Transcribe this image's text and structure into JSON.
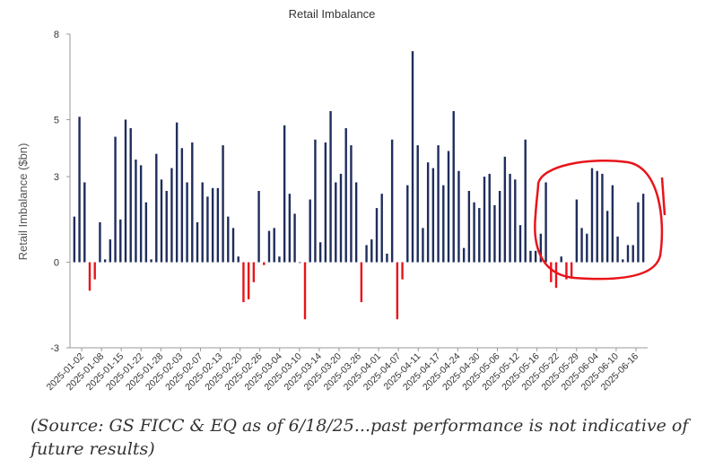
{
  "chart_data": {
    "type": "bar",
    "title": "Retail Imbalance",
    "ylabel": "Retail Imbalance ($bn)",
    "xlabel": "",
    "ylim": [
      -3,
      8
    ],
    "yticks": [
      -3,
      0,
      3,
      5,
      8
    ],
    "x_tick_labels": [
      "2025-01-02",
      "2025-01-08",
      "2025-01-15",
      "2025-01-22",
      "2025-01-28",
      "2025-02-03",
      "2025-02-07",
      "2025-02-13",
      "2025-02-20",
      "2025-02-26",
      "2025-03-04",
      "2025-03-10",
      "2025-03-14",
      "2025-03-20",
      "2025-03-26",
      "2025-04-01",
      "2025-04-07",
      "2025-04-11",
      "2025-04-17",
      "2025-04-24",
      "2025-04-30",
      "2025-05-06",
      "2025-05-12",
      "2025-05-16",
      "2025-05-22",
      "2025-05-29",
      "2025-06-04",
      "2025-06-10",
      "2025-06-16"
    ],
    "bar_values": [
      1.6,
      5.1,
      2.8,
      -1.0,
      -0.6,
      1.4,
      0.1,
      0.8,
      4.4,
      1.5,
      5.0,
      4.7,
      3.6,
      3.4,
      2.1,
      0.1,
      3.8,
      2.9,
      2.5,
      3.3,
      4.9,
      4.0,
      2.8,
      4.2,
      1.4,
      2.8,
      2.3,
      2.6,
      2.6,
      4.1,
      1.6,
      1.2,
      0.2,
      -1.4,
      -1.3,
      -0.7,
      2.5,
      -0.1,
      1.1,
      1.2,
      0.2,
      4.8,
      2.4,
      1.7,
      0.0,
      -2.0,
      2.2,
      4.3,
      0.7,
      4.2,
      5.3,
      2.8,
      3.1,
      4.7,
      4.1,
      2.8,
      -1.4,
      0.6,
      0.8,
      1.9,
      2.4,
      0.3,
      4.3,
      -2.0,
      -0.6,
      2.7,
      7.4,
      4.1,
      1.2,
      3.5,
      3.3,
      4.1,
      2.7,
      3.9,
      5.3,
      3.2,
      0.5,
      2.5,
      2.1,
      1.9,
      3.0,
      3.1,
      2.0,
      2.5,
      3.7,
      3.1,
      2.9,
      1.3,
      4.3,
      0.4,
      0.4,
      1.0,
      2.8,
      -0.7,
      -0.9,
      0.2,
      -0.6,
      -0.5,
      2.2,
      1.2,
      1.0,
      3.3,
      3.2,
      3.1,
      1.8,
      2.7,
      0.9,
      0.1,
      0.6,
      0.6,
      2.1,
      2.4
    ],
    "colors": {
      "positive": "#1f2d5c",
      "negative": "#e8141a",
      "annotation": "#e8141a"
    },
    "grid": false,
    "legend": "none",
    "annotation": "red hand-drawn oval around the most recent bars (late May – mid June 2025)"
  },
  "source_note": "(Source: GS FICC & EQ as of 6/18/25...past performance is not indicative of future results)"
}
